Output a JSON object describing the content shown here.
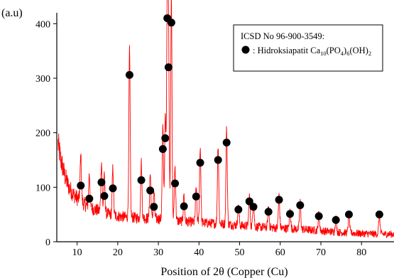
{
  "chart_data": {
    "type": "line",
    "ylabel": "(a.u)",
    "xlabel": "Position of 2θ (Copper (Cu)",
    "xlim": [
      5,
      88
    ],
    "ylim": [
      0,
      420
    ],
    "x_ticks": [
      10,
      20,
      30,
      40,
      50,
      60,
      70,
      80
    ],
    "y_ticks": [
      0,
      100,
      200,
      300,
      400
    ],
    "grid": false,
    "series": [
      {
        "type": "line",
        "color": "#ff0000",
        "background_curve": [
          [
            5.3,
            180
          ],
          [
            6,
            150
          ],
          [
            7,
            120
          ],
          [
            8,
            100
          ],
          [
            9,
            88
          ],
          [
            10,
            80
          ],
          [
            12,
            68
          ],
          [
            14,
            60
          ],
          [
            16,
            55
          ],
          [
            18,
            50
          ],
          [
            20,
            47
          ],
          [
            22,
            45
          ],
          [
            25,
            44
          ],
          [
            30,
            42
          ],
          [
            35,
            38
          ],
          [
            40,
            35
          ],
          [
            45,
            33
          ],
          [
            50,
            30
          ],
          [
            55,
            27
          ],
          [
            60,
            25
          ],
          [
            65,
            23
          ],
          [
            70,
            20
          ],
          [
            75,
            17
          ],
          [
            80,
            15
          ],
          [
            85,
            14
          ],
          [
            88,
            14
          ]
        ],
        "peaks": [
          {
            "x": 10.9,
            "y": 82
          },
          {
            "x": 13.0,
            "y": 60
          },
          {
            "x": 16.0,
            "y": 92
          },
          {
            "x": 16.7,
            "y": 66
          },
          {
            "x": 18.8,
            "y": 86
          },
          {
            "x": 22.9,
            "y": 306
          },
          {
            "x": 25.8,
            "y": 102
          },
          {
            "x": 28.0,
            "y": 82
          },
          {
            "x": 28.9,
            "y": 50
          },
          {
            "x": 31.1,
            "y": 166
          },
          {
            "x": 31.7,
            "y": 186
          },
          {
            "x": 32.2,
            "y": 412
          },
          {
            "x": 32.5,
            "y": 320
          },
          {
            "x": 33.2,
            "y": 408
          },
          {
            "x": 34.1,
            "y": 100
          },
          {
            "x": 36.3,
            "y": 48
          },
          {
            "x": 39.3,
            "y": 64
          },
          {
            "x": 40.3,
            "y": 140
          },
          {
            "x": 44.7,
            "y": 146
          },
          {
            "x": 46.8,
            "y": 176
          },
          {
            "x": 49.7,
            "y": 40
          },
          {
            "x": 52.4,
            "y": 56
          },
          {
            "x": 53.4,
            "y": 48
          },
          {
            "x": 57.1,
            "y": 38
          },
          {
            "x": 59.7,
            "y": 60
          },
          {
            "x": 62.4,
            "y": 34
          },
          {
            "x": 64.9,
            "y": 50
          },
          {
            "x": 69.5,
            "y": 32
          },
          {
            "x": 73.7,
            "y": 26
          },
          {
            "x": 76.9,
            "y": 36
          },
          {
            "x": 84.4,
            "y": 36
          }
        ]
      },
      {
        "type": "scatter",
        "name": ": Hidroksiapatit Ca10(PO4)6(OH)2",
        "color": "#000000",
        "markers": [
          {
            "x": 10.9,
            "y": 103
          },
          {
            "x": 13.0,
            "y": 79
          },
          {
            "x": 16.0,
            "y": 109
          },
          {
            "x": 16.7,
            "y": 84
          },
          {
            "x": 18.8,
            "y": 98
          },
          {
            "x": 22.9,
            "y": 306
          },
          {
            "x": 25.8,
            "y": 113
          },
          {
            "x": 28.0,
            "y": 94
          },
          {
            "x": 28.9,
            "y": 64
          },
          {
            "x": 31.1,
            "y": 170
          },
          {
            "x": 31.7,
            "y": 190
          },
          {
            "x": 32.2,
            "y": 410
          },
          {
            "x": 32.5,
            "y": 320
          },
          {
            "x": 33.2,
            "y": 402
          },
          {
            "x": 34.1,
            "y": 107
          },
          {
            "x": 36.3,
            "y": 65
          },
          {
            "x": 39.3,
            "y": 83
          },
          {
            "x": 40.3,
            "y": 145
          },
          {
            "x": 44.7,
            "y": 150
          },
          {
            "x": 46.8,
            "y": 182
          },
          {
            "x": 49.7,
            "y": 59
          },
          {
            "x": 52.4,
            "y": 74
          },
          {
            "x": 53.4,
            "y": 64
          },
          {
            "x": 57.1,
            "y": 55
          },
          {
            "x": 59.7,
            "y": 77
          },
          {
            "x": 62.4,
            "y": 51
          },
          {
            "x": 64.9,
            "y": 67
          },
          {
            "x": 69.5,
            "y": 47
          },
          {
            "x": 73.7,
            "y": 40
          },
          {
            "x": 76.9,
            "y": 50
          },
          {
            "x": 84.4,
            "y": 50
          }
        ]
      }
    ],
    "legend": {
      "placement": "top-right",
      "title": "ICSD No 96-900-3549:",
      "entry": {
        "prefix": ": Hidroksiapatit Ca",
        "parts": [
          {
            "text": "10",
            "sub": true
          },
          {
            "text": "(PO",
            "sub": false
          },
          {
            "text": "4",
            "sub": true
          },
          {
            "text": ")",
            "sub": false
          },
          {
            "text": "6",
            "sub": true
          },
          {
            "text": "(OH)",
            "sub": false
          },
          {
            "text": "2",
            "sub": true
          }
        ]
      }
    }
  }
}
